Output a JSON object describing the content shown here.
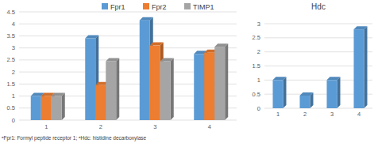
{
  "chart_data": [
    {
      "type": "bar",
      "categories": [
        "1",
        "2",
        "3",
        "4"
      ],
      "series": [
        {
          "name": "Fpr1",
          "color": "#5b9bd5",
          "values": [
            1,
            3.4,
            4.15,
            2.75
          ]
        },
        {
          "name": "Fpr2",
          "color": "#ed7d31",
          "values": [
            1,
            1.45,
            3.1,
            2.8
          ]
        },
        {
          "name": "TIMP1",
          "color": "#a5a5a5",
          "values": [
            1,
            2.45,
            2.45,
            3.05
          ]
        }
      ],
      "ylim": [
        0,
        4.5
      ],
      "yticks": [
        0,
        0.5,
        1,
        1.5,
        2,
        2.5,
        3,
        3.5,
        4,
        4.5
      ],
      "grid": true,
      "legend": "top",
      "annotations": [
        "ᵃFpr1: Formyl peptide receptor 1;  ᵃHdc: histidine decarboxylase"
      ]
    },
    {
      "type": "bar",
      "title": "Hdc",
      "categories": [
        "1",
        "2",
        "3",
        "4"
      ],
      "values": [
        1,
        0.45,
        1,
        2.8
      ],
      "color": "#5b9bd5",
      "ylim": [
        0,
        3
      ],
      "yticks": [
        0,
        0.5,
        1,
        1.5,
        2,
        2.5,
        3
      ],
      "grid": true
    }
  ]
}
